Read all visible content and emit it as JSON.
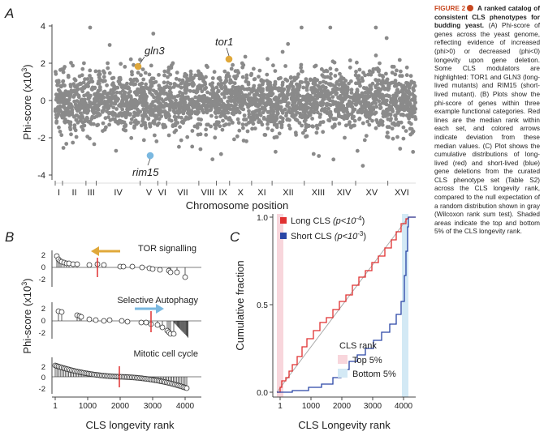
{
  "panel_labels": {
    "a": "A",
    "b": "B",
    "c": "C"
  },
  "panelA": {
    "ylabel_main": "Phi-score (x10",
    "ylabel_sup": "3",
    "ylabel_close": ")",
    "xlabel": "Chromosome position",
    "yticks": [
      "4",
      "2",
      "0",
      "-2",
      "-4"
    ],
    "chromosomes": [
      "I",
      "II",
      "III",
      "IV",
      "V",
      "VI",
      "VII",
      "VIII",
      "IX",
      "X",
      "XI",
      "XII",
      "XIII",
      "XIV",
      "XV",
      "XVI"
    ],
    "highlighted": [
      {
        "name": "gln3",
        "color": "#e0a83a"
      },
      {
        "name": "tor1",
        "color": "#e0a83a"
      },
      {
        "name": "rim15",
        "color": "#7ab8e0"
      }
    ]
  },
  "panelB": {
    "ylabel_main": "Phi-score (x10",
    "ylabel_sup": "3",
    "ylabel_close": ")",
    "xlabel": "CLS longevity rank",
    "xticks": [
      "1",
      "1000",
      "2000",
      "3000",
      "4000"
    ],
    "yticks": [
      "2",
      "0",
      "-2"
    ],
    "subplots": [
      {
        "title": "TOR signalling",
        "arrow_color": "#e0a83a"
      },
      {
        "title": "Selective Autophagy",
        "arrow_color": "#7ab8e0"
      },
      {
        "title": "Mitotic cell cycle"
      }
    ]
  },
  "panelC": {
    "ylabel": "Cumulative fraction",
    "xlabel": "CLS Longevity rank",
    "xticks": [
      "1",
      "1000",
      "2000",
      "3000",
      "4000"
    ],
    "yticks": [
      "1.0",
      "0.5",
      "0.0"
    ],
    "legend": [
      {
        "label": "Long CLS ",
        "p": "(p<10",
        "sup": "-4",
        "close": ")",
        "color": "#e03030"
      },
      {
        "label": "Short CLS  ",
        "p": "(p<10",
        "sup": "-3",
        "close": ")",
        "color": "#2a46a6"
      }
    ],
    "rank_legend_title": "CLS rank",
    "rank_legend": [
      {
        "label": "Top 5%",
        "color": "#f8d6dc"
      },
      {
        "label": "Bottom 5%",
        "color": "#d3e9f5"
      }
    ]
  },
  "caption": {
    "figure_label": "FIGURE 2",
    "title": "A ranked catalog of consistent CLS phenotypes for budding yeast.",
    "body": " (A) Phi-score of genes across the yeast genome, reflecting evidence of increased (phi>0) or decreased (phi<0) longevity upon gene deletion. Some CLS modulators are highlighted: TOR1 and GLN3 (long-lived mutants) and RIM15 (short-lived mutant). (B) Plots show the phi-score of genes within three example functional categories. Red lines are the median rank within each set, and colored arrows indicate deviation from these median values. (C) Plot shows the cumulative distributions of long-lived (red) and short-lived (blue) gene deletions from the curated CLS phenotype set (Table S2) across the CLS longevity rank, compared to the null expectation of a random distribution shown in gray (Wilcoxon rank sum test). Shaded areas indicate the top and bottom 5% of the CLS longevity rank."
  },
  "colors": {
    "dots": "#8a8a8a",
    "median": "#e03030",
    "long": "#e03030",
    "short": "#2a46a6",
    "null": "#aaaaaa"
  }
}
